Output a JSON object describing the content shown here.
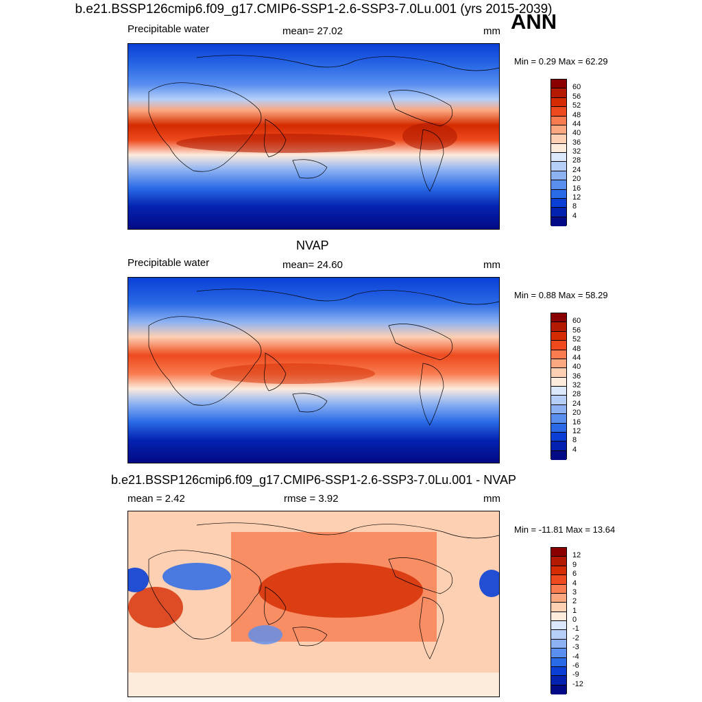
{
  "header": {
    "title": "b.e21.BSSP126cmip6.f09_g17.CMIP6-SSP1-2.6-SSP3-7.0Lu.001 (yrs 2015-2039)",
    "season": "ANN"
  },
  "panels": [
    {
      "id": "model",
      "heading": "",
      "left_label": "Precipitable water",
      "mid_label": "mean=  27.02",
      "units": "mm",
      "min_max": "Min =   0.29 Max =  62.29",
      "colorbar": {
        "levels": [
          "60",
          "56",
          "52",
          "48",
          "44",
          "40",
          "36",
          "32",
          "28",
          "24",
          "20",
          "16",
          "12",
          "8",
          "4"
        ],
        "colors": [
          "#8a0000",
          "#b31a00",
          "#d42b00",
          "#ee4a1e",
          "#f87c50",
          "#fba77f",
          "#fdd0b3",
          "#fdebdc",
          "#dbe8fb",
          "#b6cff8",
          "#8db2f2",
          "#5a8ff0",
          "#2a6ae6",
          "#0a3fd6",
          "#0422b0",
          "#020a86"
        ]
      }
    },
    {
      "id": "obs",
      "heading": "NVAP",
      "left_label": "Precipitable water",
      "mid_label": "mean=  24.60",
      "units": "mm",
      "min_max": "Min =   0.88 Max =  58.29",
      "colorbar": {
        "levels": [
          "60",
          "56",
          "52",
          "48",
          "44",
          "40",
          "36",
          "32",
          "28",
          "24",
          "20",
          "16",
          "12",
          "8",
          "4"
        ],
        "colors": [
          "#8a0000",
          "#b31a00",
          "#d42b00",
          "#ee4a1e",
          "#f87c50",
          "#fba77f",
          "#fdd0b3",
          "#fdebdc",
          "#dbe8fb",
          "#b6cff8",
          "#8db2f2",
          "#5a8ff0",
          "#2a6ae6",
          "#0a3fd6",
          "#0422b0",
          "#020a86"
        ]
      }
    },
    {
      "id": "diff",
      "heading": "b.e21.BSSP126cmip6.f09_g17.CMIP6-SSP1-2.6-SSP3-7.0Lu.001 - NVAP",
      "left_label": "mean =   2.42",
      "mid_label": "rmse =   3.92",
      "units": "mm",
      "min_max": "Min = -11.81 Max =  13.64",
      "colorbar": {
        "levels": [
          "12",
          "9",
          "6",
          "4",
          "3",
          "2",
          "1",
          "0",
          "-1",
          "-2",
          "-3",
          "-4",
          "-6",
          "-9",
          "-12"
        ],
        "colors": [
          "#8a0000",
          "#b31a00",
          "#d42b00",
          "#ee4a1e",
          "#f87c50",
          "#fba77f",
          "#fdd0b3",
          "#fdebdc",
          "#dbe8fb",
          "#b6cff8",
          "#8db2f2",
          "#5a8ff0",
          "#2a6ae6",
          "#0a3fd6",
          "#0422b0",
          "#020a86"
        ]
      }
    }
  ]
}
